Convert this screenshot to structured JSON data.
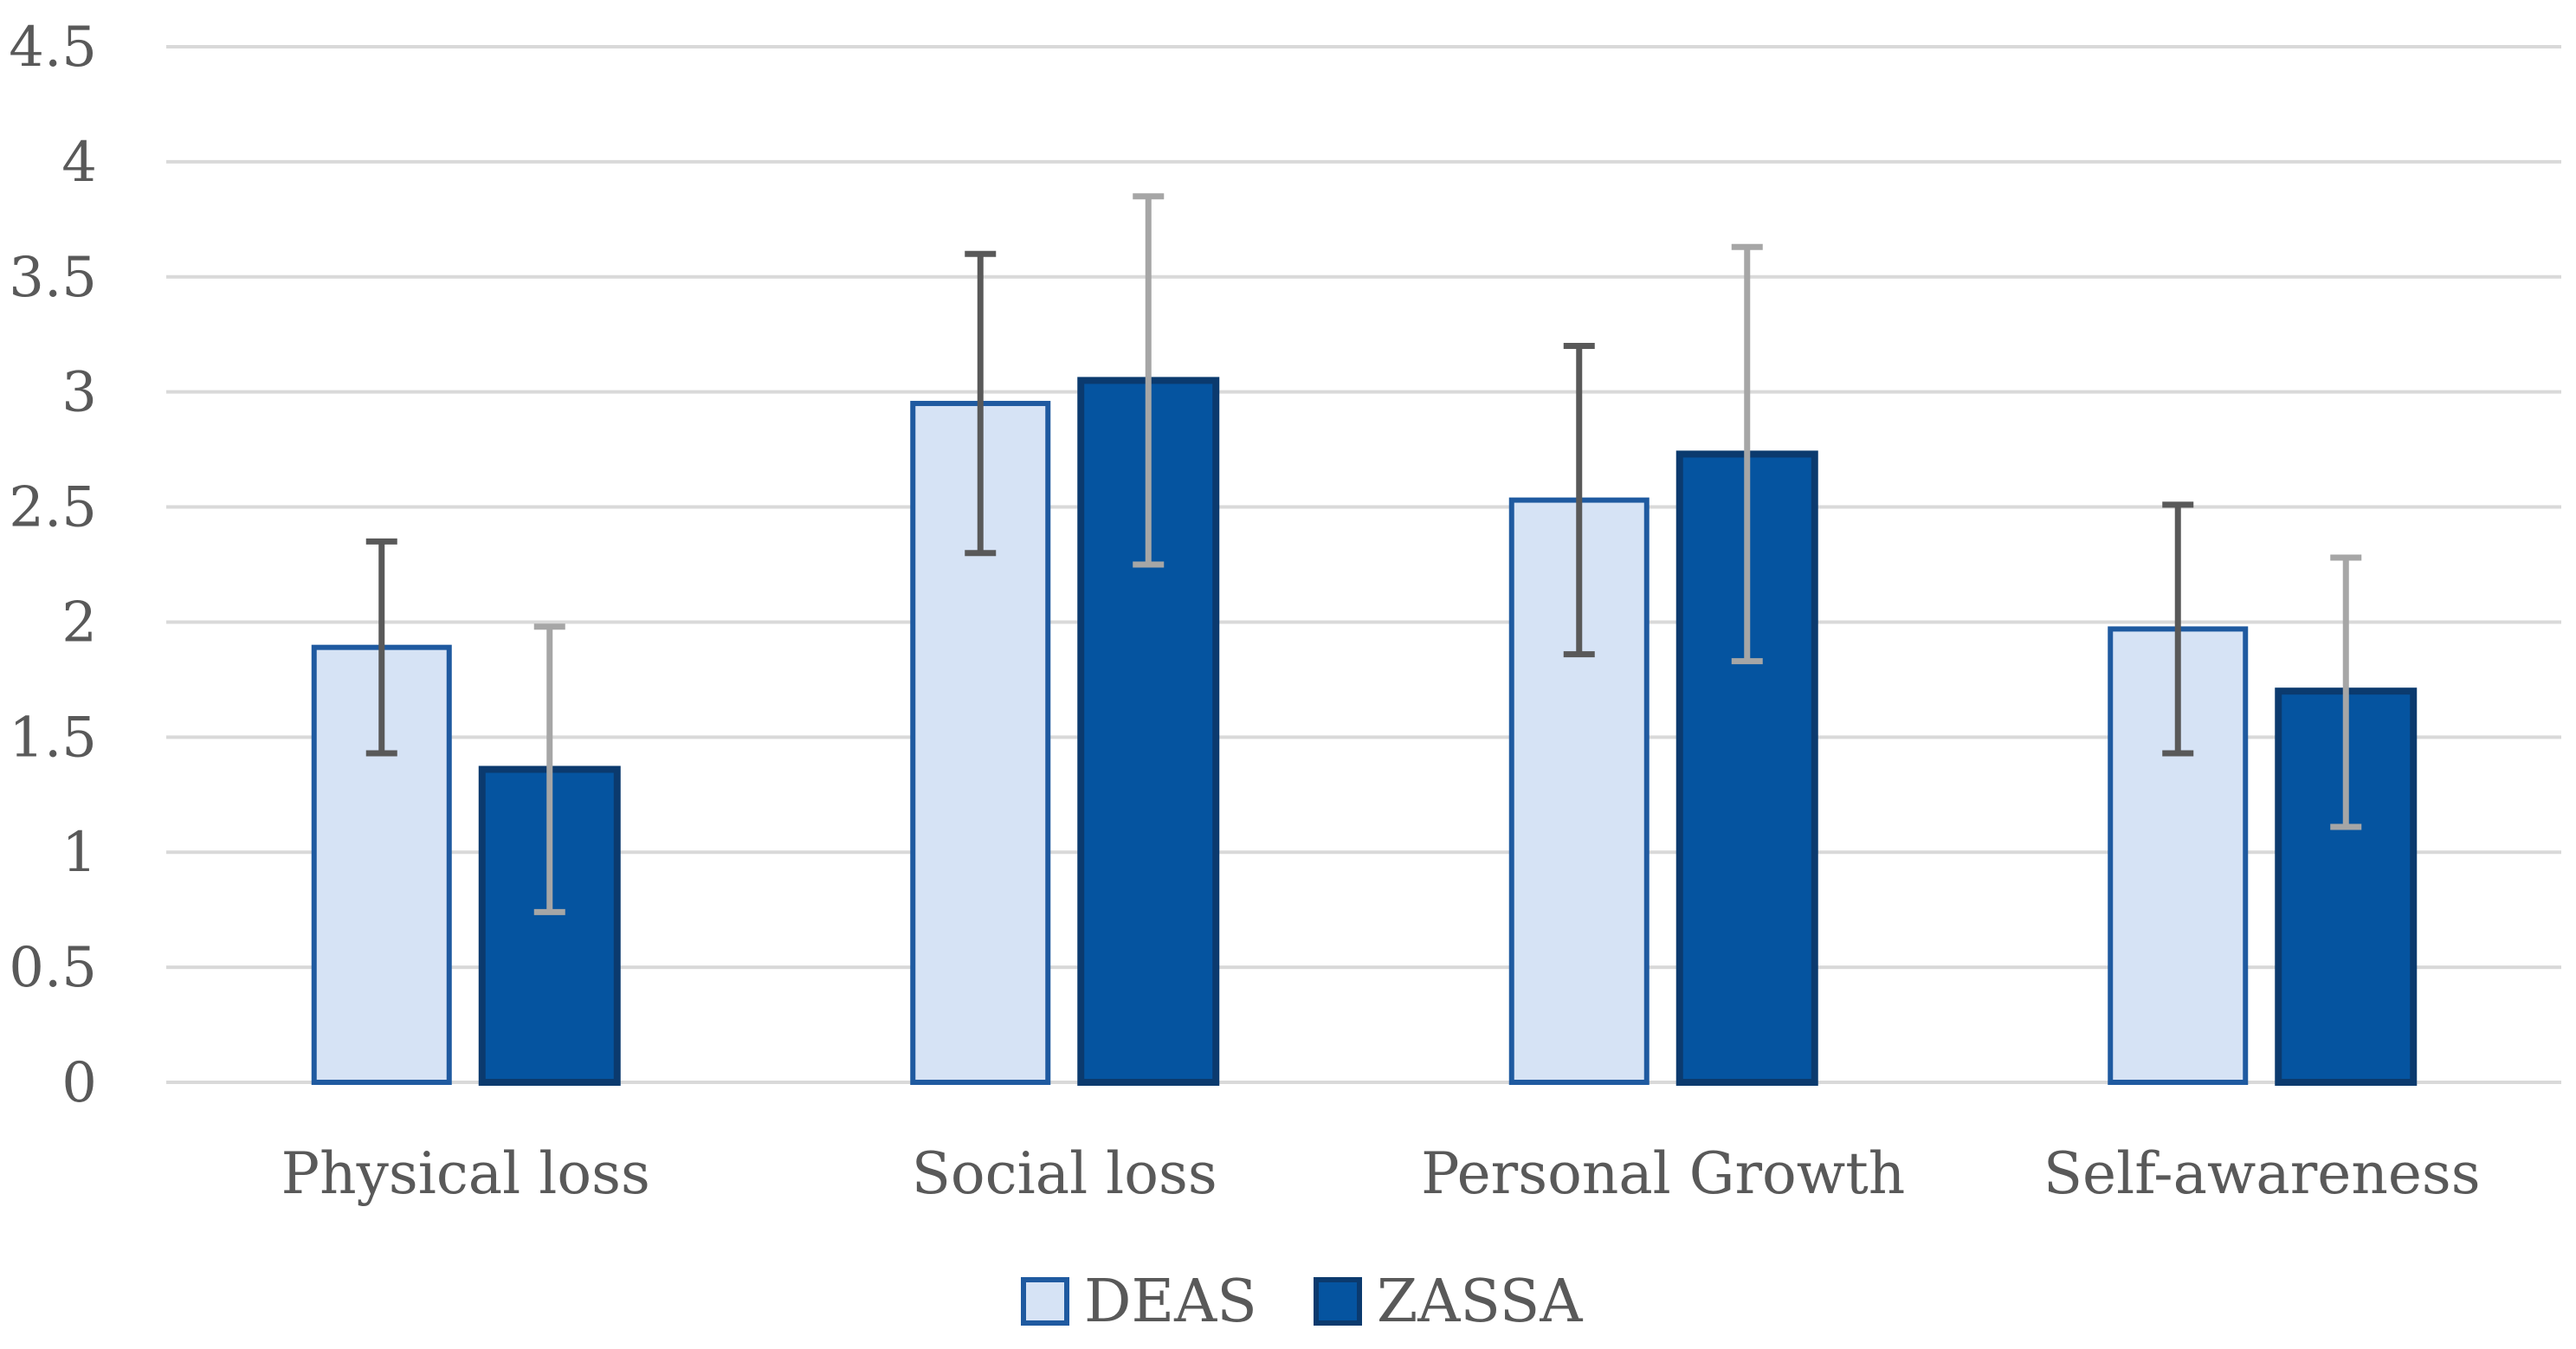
{
  "chart_data": {
    "type": "bar",
    "title": "",
    "xlabel": "",
    "ylabel": "",
    "ylim": [
      0,
      4.5
    ],
    "yticks": [
      "0",
      "0.5",
      "1",
      "1.5",
      "2",
      "2.5",
      "3",
      "3.5",
      "4",
      "4.5"
    ],
    "yticks_values": [
      0,
      0.5,
      1,
      1.5,
      2,
      2.5,
      3,
      3.5,
      4,
      4.5
    ],
    "grid": true,
    "legend_position": "bottom",
    "categories": [
      "Physical loss",
      "Social loss",
      "Personal Growth",
      "Self-awareness"
    ],
    "series": [
      {
        "name": "DEAS",
        "values": [
          1.89,
          2.95,
          2.53,
          1.97
        ],
        "error_low": [
          1.43,
          2.3,
          1.86,
          1.43
        ],
        "error_high": [
          2.35,
          3.6,
          3.2,
          2.51
        ],
        "fill": "#d6e3f5",
        "stroke": "#1f5aa0",
        "error_color": "#595959"
      },
      {
        "name": "ZASSA",
        "values": [
          1.36,
          3.05,
          2.73,
          1.7
        ],
        "error_low": [
          0.74,
          2.25,
          1.83,
          1.11
        ],
        "error_high": [
          1.98,
          3.85,
          3.63,
          2.28
        ],
        "fill": "#0554a0",
        "stroke": "#0b3a6e",
        "error_color": "#a6a6a6"
      }
    ]
  }
}
